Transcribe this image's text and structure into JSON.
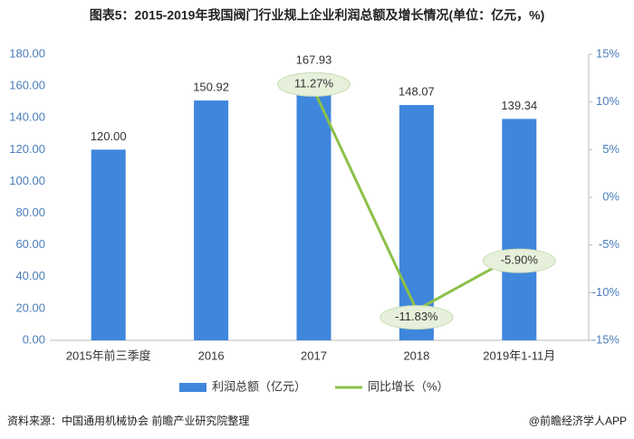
{
  "chart_data": {
    "type": "bar-line",
    "title": "图表5：2015-2019年我国阀门行业规上企业利润总额及增长情况(单位：亿元，%)",
    "categories": [
      "2015年前三季度",
      "2016",
      "2017",
      "2018",
      "2019年1-11月"
    ],
    "series": [
      {
        "name": "利润总额（亿元）",
        "type": "bar",
        "color": "#3f86dd",
        "axis": "y",
        "values": [
          120.0,
          150.92,
          167.93,
          148.07,
          139.34
        ],
        "value_labels": [
          "120.00",
          "150.92",
          "167.93",
          "148.07",
          "139.34"
        ]
      },
      {
        "name": "同比增长（%）",
        "type": "line",
        "color": "#8dc04a",
        "axis": "y2",
        "values": [
          null,
          null,
          11.27,
          -11.83,
          -5.9
        ],
        "value_labels": [
          null,
          null,
          "11.27%",
          "-11.83%",
          "-5.90%"
        ]
      }
    ],
    "ylim": [
      0,
      180
    ],
    "yticks": [
      {
        "value": 0,
        "label": "0.00"
      },
      {
        "value": 20,
        "label": "20.00"
      },
      {
        "value": 40,
        "label": "40.00"
      },
      {
        "value": 60,
        "label": "60.00"
      },
      {
        "value": 80,
        "label": "80.00"
      },
      {
        "value": 100,
        "label": "100.00"
      },
      {
        "value": 120,
        "label": "120.00"
      },
      {
        "value": 140,
        "label": "140.00"
      },
      {
        "value": 160,
        "label": "160.00"
      },
      {
        "value": 180,
        "label": "180.00"
      }
    ],
    "y2lim": [
      -15,
      15
    ],
    "y2ticks": [
      {
        "value": -15,
        "label": "-15%"
      },
      {
        "value": -10,
        "label": "-10%"
      },
      {
        "value": -5,
        "label": "-5%"
      },
      {
        "value": 0,
        "label": "0%"
      },
      {
        "value": 5,
        "label": "5%"
      },
      {
        "value": 10,
        "label": "10%"
      },
      {
        "value": 15,
        "label": "15%"
      }
    ],
    "legend": "bottom",
    "source": "资料来源：中国通用机械协会 前瞻产业研究院整理",
    "credit": "@前瞻经济学人APP"
  }
}
